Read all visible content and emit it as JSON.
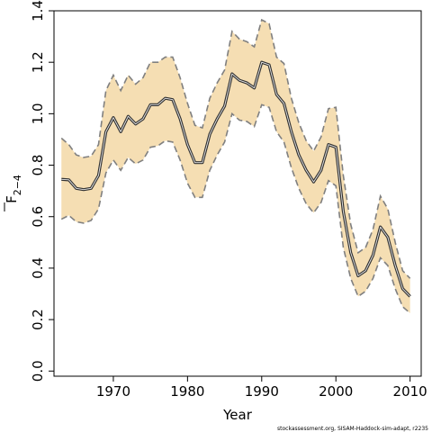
{
  "chart_data": {
    "type": "line",
    "xlabel": "Year",
    "ylabel_main": "F",
    "ylabel_sub": "2−4",
    "source": "stockassessment.org, SISAM-Haddock-sim-adapt, r2235",
    "xlim": [
      1962,
      2011.5
    ],
    "ylim": [
      -0.02,
      1.4
    ],
    "x_ticks": [
      1970,
      1980,
      1990,
      2000,
      2010
    ],
    "y_ticks": [
      "0.0",
      "0.2",
      "0.4",
      "0.6",
      "0.8",
      "1.0",
      "1.2",
      "1.4"
    ],
    "grid": false,
    "colors": {
      "band": "#f5deb3",
      "band_edge": "#808080",
      "line": "#333333"
    },
    "x": [
      1963,
      1964,
      1965,
      1966,
      1967,
      1968,
      1969,
      1970,
      1971,
      1972,
      1973,
      1974,
      1975,
      1976,
      1977,
      1978,
      1979,
      1980,
      1981,
      1982,
      1983,
      1984,
      1985,
      1986,
      1987,
      1988,
      1989,
      1990,
      1991,
      1992,
      1993,
      1994,
      1995,
      1996,
      1997,
      1998,
      1999,
      2000,
      2001,
      2002,
      2003,
      2004,
      2005,
      2006,
      2007,
      2008,
      2009,
      2010
    ],
    "series": [
      {
        "role": "estimate",
        "values": [
          0.745,
          0.743,
          0.71,
          0.705,
          0.71,
          0.76,
          0.93,
          0.985,
          0.93,
          0.99,
          0.96,
          0.98,
          1.035,
          1.035,
          1.06,
          1.055,
          0.98,
          0.88,
          0.81,
          0.81,
          0.92,
          0.98,
          1.03,
          1.155,
          1.13,
          1.12,
          1.1,
          1.2,
          1.19,
          1.075,
          1.04,
          0.93,
          0.84,
          0.78,
          0.735,
          0.78,
          0.88,
          0.87,
          0.62,
          0.46,
          0.37,
          0.39,
          0.45,
          0.56,
          0.52,
          0.41,
          0.32,
          0.29
        ]
      },
      {
        "role": "upper",
        "values": [
          0.905,
          0.88,
          0.84,
          0.83,
          0.835,
          0.88,
          1.09,
          1.15,
          1.09,
          1.15,
          1.115,
          1.14,
          1.2,
          1.2,
          1.22,
          1.22,
          1.14,
          1.04,
          0.955,
          0.945,
          1.06,
          1.12,
          1.17,
          1.32,
          1.29,
          1.28,
          1.26,
          1.365,
          1.35,
          1.22,
          1.195,
          1.06,
          0.965,
          0.895,
          0.855,
          0.91,
          1.02,
          1.025,
          0.76,
          0.57,
          0.46,
          0.48,
          0.55,
          0.68,
          0.63,
          0.5,
          0.39,
          0.36
        ]
      },
      {
        "role": "lower",
        "values": [
          0.59,
          0.605,
          0.58,
          0.575,
          0.585,
          0.63,
          0.77,
          0.82,
          0.78,
          0.83,
          0.805,
          0.82,
          0.87,
          0.875,
          0.895,
          0.89,
          0.82,
          0.73,
          0.675,
          0.675,
          0.78,
          0.84,
          0.89,
          1.0,
          0.975,
          0.97,
          0.95,
          1.035,
          1.025,
          0.93,
          0.89,
          0.79,
          0.71,
          0.65,
          0.615,
          0.655,
          0.74,
          0.72,
          0.48,
          0.36,
          0.29,
          0.31,
          0.36,
          0.44,
          0.41,
          0.32,
          0.25,
          0.225
        ]
      }
    ]
  }
}
